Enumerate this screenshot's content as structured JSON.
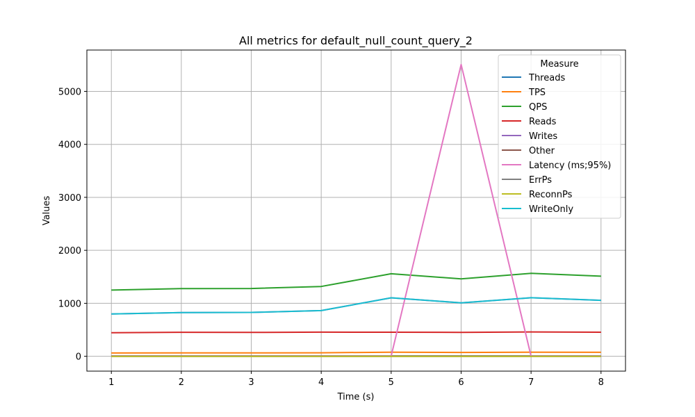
{
  "chart_data": {
    "type": "line",
    "title": "All metrics for default_null_count_query_2",
    "xlabel": "Time (s)",
    "ylabel": "Values",
    "xlim": [
      0.65,
      8.35
    ],
    "ylim": [
      -280,
      5780
    ],
    "xticks": [
      1,
      2,
      3,
      4,
      5,
      6,
      7,
      8
    ],
    "yticks": [
      0,
      1000,
      2000,
      3000,
      4000,
      5000
    ],
    "grid": true,
    "legend": {
      "title": "Measure",
      "placement": "top-right"
    },
    "x": [
      1,
      2,
      3,
      4,
      5,
      6,
      7,
      8
    ],
    "series": [
      {
        "name": "Threads",
        "color": "#1f77b4",
        "values": [
          4,
          4,
          4,
          4,
          4,
          4,
          4,
          4
        ]
      },
      {
        "name": "TPS",
        "color": "#ff7f0e",
        "values": [
          62,
          64,
          64,
          66,
          78,
          73,
          78,
          76
        ]
      },
      {
        "name": "QPS",
        "color": "#2ca02c",
        "values": [
          1250,
          1278,
          1280,
          1318,
          1558,
          1462,
          1565,
          1512
        ]
      },
      {
        "name": "Reads",
        "color": "#d62728",
        "values": [
          446,
          453,
          451,
          456,
          454,
          452,
          460,
          455
        ]
      },
      {
        "name": "Writes",
        "color": "#9467bd",
        "values": [
          800,
          825,
          829,
          862,
          1104,
          1010,
          1105,
          1057
        ]
      },
      {
        "name": "Other",
        "color": "#8c564b",
        "values": [
          5,
          5,
          5,
          5,
          5,
          5,
          5,
          5
        ]
      },
      {
        "name": "Latency (ms;95%)",
        "color": "#e377c2",
        "values": [
          3,
          3,
          3,
          3,
          3,
          5507,
          3,
          3
        ]
      },
      {
        "name": "ErrPs",
        "color": "#7f7f7f",
        "values": [
          0,
          0,
          0,
          0,
          0,
          0,
          0,
          0
        ]
      },
      {
        "name": "ReconnPs",
        "color": "#bcbd22",
        "values": [
          0,
          0,
          0,
          0,
          0,
          0,
          0,
          0
        ]
      },
      {
        "name": "WriteOnly",
        "color": "#17becf",
        "values": [
          800,
          825,
          829,
          862,
          1104,
          1010,
          1105,
          1057
        ]
      }
    ]
  }
}
